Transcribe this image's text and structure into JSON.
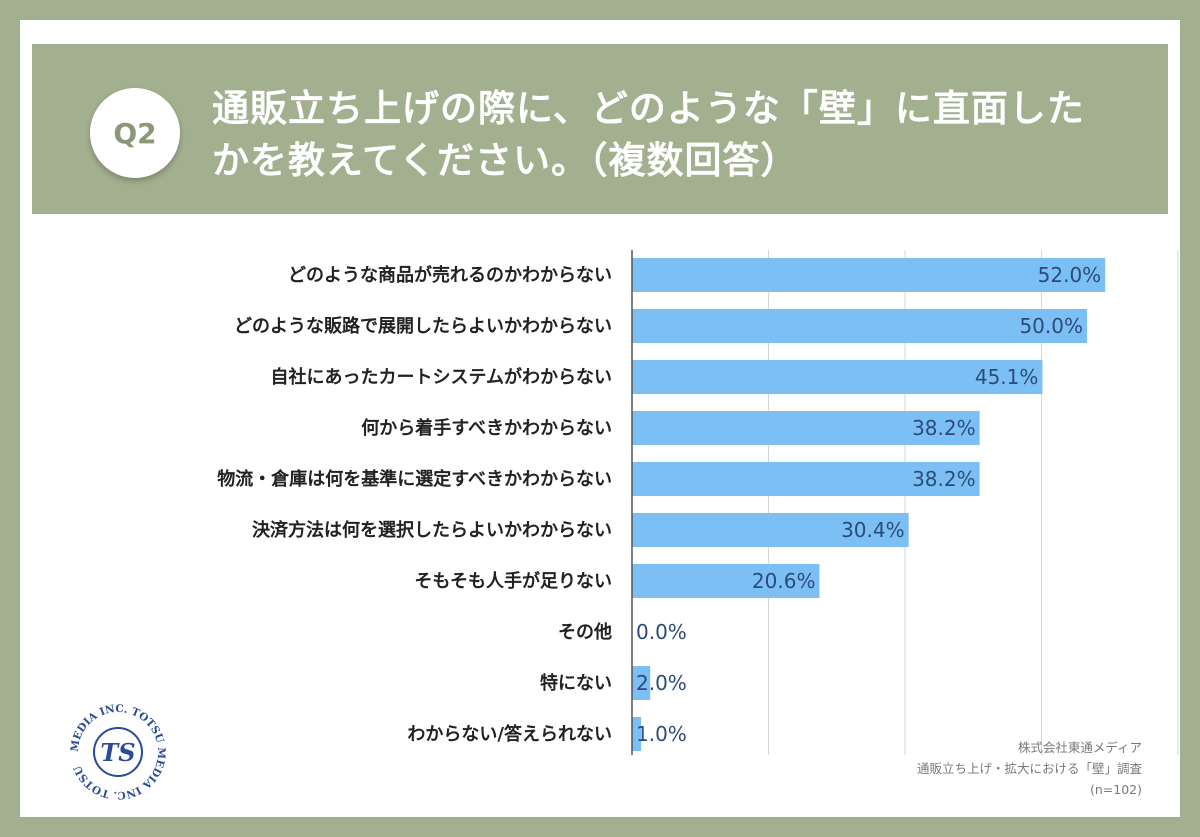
{
  "header": {
    "badge": "Q2",
    "title_line1": "通販立ち上げの際に、どのような「壁」に直面した",
    "title_line2": "かを教えてください。（複数回答）"
  },
  "colors": {
    "frame": "#a3b08f",
    "bar": "#7cbff4",
    "value_text": "#2b4c7a",
    "label_text": "#222222"
  },
  "chart_data": {
    "type": "bar",
    "orientation": "horizontal",
    "categories": [
      "どのような商品が売れるのかわからない",
      "どのような販路で展開したらよいかわからない",
      "自社にあったカートシステムがわからない",
      "何から着手すべきかわからない",
      "物流・倉庫は何を基準に選定すべきかわからない",
      "決済方法は何を選択したらよいかわからない",
      "そもそも人手が足りない",
      "その他",
      "特にない",
      "わからない/答えられない"
    ],
    "values": [
      52.0,
      50.0,
      45.1,
      38.2,
      38.2,
      30.4,
      20.6,
      0.0,
      2.0,
      1.0
    ],
    "value_labels": [
      "52.0%",
      "50.0%",
      "45.1%",
      "38.2%",
      "38.2%",
      "30.4%",
      "20.6%",
      "0.0%",
      "2.0%",
      "1.0%"
    ],
    "xlim": [
      0,
      60
    ],
    "grid": true
  },
  "footer": {
    "company": "株式会社東通メディア",
    "survey": "通販立ち上げ・拡大における「壁」調査",
    "sample": "(n=102)"
  },
  "logo": {
    "text": "MEDIA INC. TOTSU MEDIA INC. TOTSU",
    "mark": "TS"
  }
}
